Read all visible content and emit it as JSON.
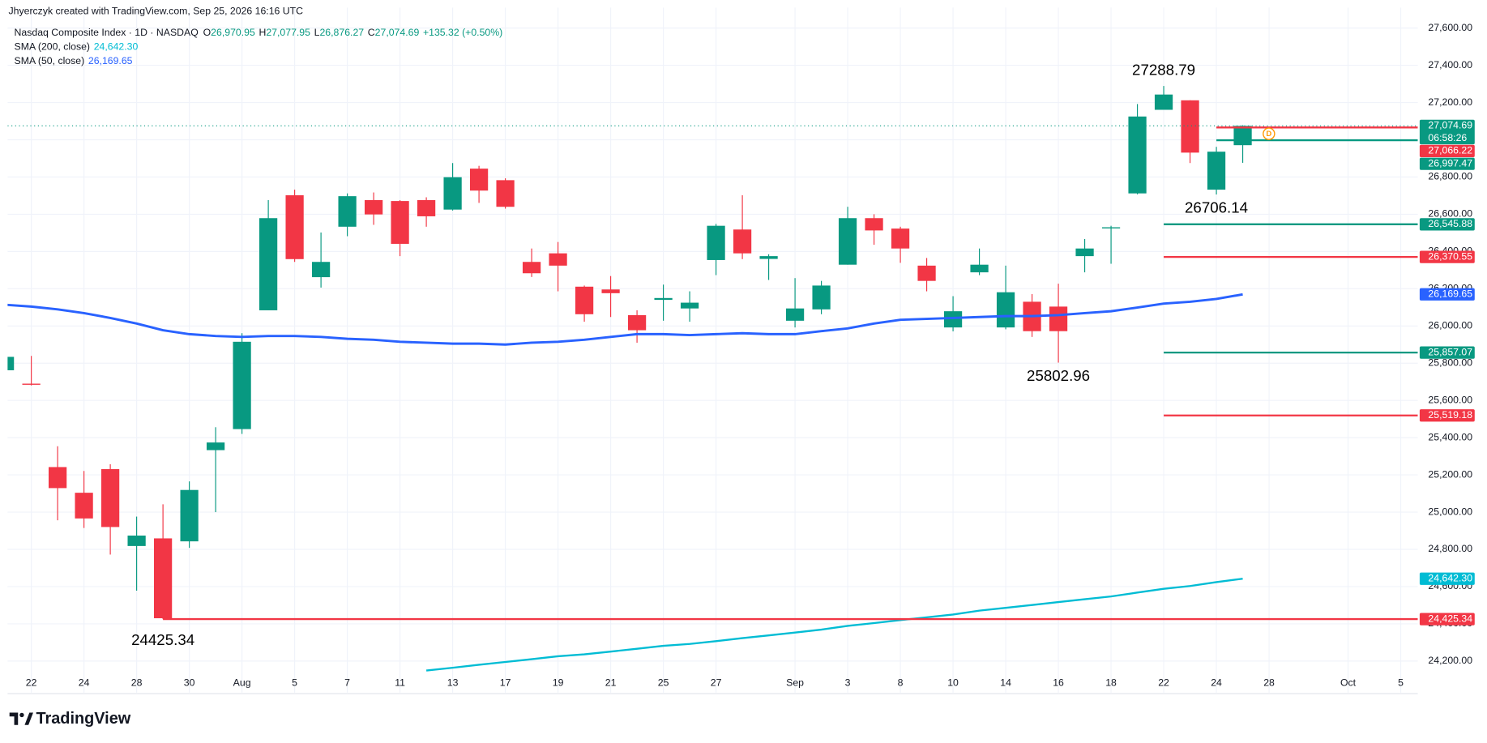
{
  "header": {
    "attribution": "Jhyerczyk created with TradingView.com, Sep 25, 2026 16:16 UTC"
  },
  "footer": {
    "brand": "TradingView"
  },
  "chart_data": {
    "type": "candlestick",
    "title": "Nasdaq Composite Index · 1D · NASDAQ",
    "ohlc_legend": [
      {
        "key": "O",
        "value": "26,970.95"
      },
      {
        "key": "H",
        "value": "27,077.95"
      },
      {
        "key": "L",
        "value": "26,876.27"
      },
      {
        "key": "C",
        "value": "27,074.69"
      }
    ],
    "change": "+135.32 (+0.50%)",
    "countdown": "06:58:26",
    "marker": "D",
    "up_color": "#089981",
    "down_color": "#f23645",
    "grid": true,
    "categories": [
      null,
      "22",
      null,
      "24",
      null,
      "28",
      null,
      "30",
      null,
      "Aug",
      null,
      "5",
      null,
      "7",
      null,
      "11",
      null,
      "13",
      null,
      "17",
      null,
      "19",
      null,
      "21",
      null,
      "25",
      null,
      "27",
      null,
      null,
      "Sep",
      null,
      "3",
      null,
      "8",
      null,
      "10",
      null,
      "14",
      null,
      "16",
      null,
      "18",
      null,
      "22",
      null,
      "24",
      null,
      "28",
      null,
      null,
      "Oct",
      null,
      "5"
    ],
    "open": [
      25762,
      25690,
      25242,
      25104,
      25231,
      24818,
      24859,
      24843,
      25333,
      25446,
      26084,
      26702,
      26262,
      26533,
      26676,
      26671,
      26676,
      26625,
      26845,
      26783,
      26344,
      26390,
      26211,
      26196,
      26058,
      26140,
      26094,
      26354,
      26518,
      26360,
      26028,
      26089,
      26329,
      26579,
      26523,
      26324,
      25992,
      26288,
      25992,
      26130,
      26104,
      26375,
      26524,
      26712,
      27161,
      27212,
      26732,
      26970.95,
      null,
      null,
      null,
      null,
      null,
      null
    ],
    "high": [
      25840,
      25839,
      25354,
      25221,
      25257,
      24976,
      25042,
      25165,
      25456,
      25961,
      26676,
      26732,
      26502,
      26712,
      26717,
      26676,
      26691,
      26875,
      26860,
      26793,
      26416,
      26451,
      26217,
      26268,
      26084,
      26222,
      26186,
      26548,
      26702,
      26385,
      26257,
      26242,
      26640,
      26600,
      26533,
      26365,
      26160,
      26416,
      26324,
      26171,
      26227,
      26467,
      26538,
      27192,
      27288.79,
      27212,
      26962,
      27077.95,
      null,
      null,
      null,
      null,
      null,
      null
    ],
    "low": [
      25760,
      25680,
      24956,
      24915,
      24772,
      24578,
      24425.34,
      24808,
      25000,
      25420,
      26084,
      26344,
      26206,
      26482,
      26543,
      26375,
      26533,
      26620,
      26661,
      26630,
      26263,
      26186,
      26023,
      26048,
      25910,
      26028,
      26023,
      26273,
      26359,
      26247,
      25992,
      26063,
      26329,
      26436,
      26339,
      26186,
      25971,
      26273,
      25982,
      25941,
      25802.96,
      26288,
      26334,
      26707,
      27161,
      26875,
      26706.14,
      26876.27,
      null,
      null,
      null,
      null,
      null,
      null
    ],
    "close": [
      25834,
      25684,
      25129,
      24966,
      24920,
      24874,
      24430,
      25119,
      25374,
      25915,
      26579,
      26359,
      26344,
      26697,
      26599,
      26441,
      26589,
      26799,
      26727,
      26640,
      26283,
      26324,
      26063,
      26176,
      25977,
      26150,
      26125,
      26538,
      26390,
      26375,
      26094,
      26217,
      26579,
      26513,
      26416,
      26242,
      26079,
      26329,
      26181,
      25972,
      25972,
      26416,
      26530,
      27125,
      27243,
      26931,
      26936,
      27074.69,
      null,
      null,
      null,
      null,
      null,
      null
    ],
    "series": [
      {
        "name": "SMA (200, close)",
        "color": "#00bcd4",
        "value_label": "24,642.30",
        "values": [
          null,
          null,
          null,
          null,
          null,
          null,
          null,
          null,
          null,
          null,
          null,
          null,
          null,
          null,
          null,
          null,
          24149,
          24164,
          24180,
          24195,
          24210,
          24226,
          24236,
          24251,
          24266,
          24282,
          24292,
          24307,
          24323,
          24338,
          24353,
          24369,
          24389,
          24404,
          24420,
          24435,
          24450,
          24471,
          24486,
          24501,
          24517,
          24532,
          24547,
          24568,
          24588,
          24603,
          24624,
          24642.3,
          null,
          null,
          null,
          null,
          null,
          null
        ]
      },
      {
        "name": "SMA (50, close)",
        "color": "#2962ff",
        "value_label": "26,169.65",
        "values": [
          26114,
          26104,
          26089,
          26069,
          26043,
          26013,
          25977,
          25956,
          25946,
          25941,
          25946,
          25946,
          25941,
          25931,
          25926,
          25915,
          25910,
          25905,
          25905,
          25900,
          25910,
          25915,
          25926,
          25941,
          25956,
          25956,
          25951,
          25956,
          25961,
          25956,
          25956,
          25972,
          25987,
          26013,
          26033,
          26038,
          26043,
          26048,
          26053,
          26053,
          26058,
          26069,
          26079,
          26099,
          26120,
          26130,
          26145,
          26169.65,
          null,
          null,
          null,
          null,
          null,
          null
        ]
      }
    ],
    "ylim": [
      24030,
      27710
    ],
    "yticks": [
      {
        "value": 24200,
        "label": "24,200.00"
      },
      {
        "value": 24400,
        "label": "24,400.00"
      },
      {
        "value": 24600,
        "label": "24,600.00"
      },
      {
        "value": 24800,
        "label": "24,800.00"
      },
      {
        "value": 25000,
        "label": "25,000.00"
      },
      {
        "value": 25200,
        "label": "25,200.00"
      },
      {
        "value": 25400,
        "label": "25,400.00"
      },
      {
        "value": 25600,
        "label": "25,600.00"
      },
      {
        "value": 25800,
        "label": "25,800.00"
      },
      {
        "value": 26000,
        "label": "26,000.00"
      },
      {
        "value": 26200,
        "label": "26,200.00"
      },
      {
        "value": 26400,
        "label": "26,400.00"
      },
      {
        "value": 26600,
        "label": "26,600.00"
      },
      {
        "value": 26800,
        "label": "26,800.00"
      },
      {
        "value": 27000,
        "label": "27,000.00"
      },
      {
        "value": 27200,
        "label": "27,200.00"
      },
      {
        "value": 27400,
        "label": "27,400.00"
      },
      {
        "value": 27600,
        "label": "27,600.00"
      }
    ],
    "levels": [
      {
        "value": 27074.69,
        "label": "27,074.69",
        "color": "#089981",
        "style": "dotted",
        "current": true
      },
      {
        "value": 27066.22,
        "label": "27,066.22",
        "color": "#f23645",
        "from": 46
      },
      {
        "value": 26997.47,
        "label": "26,997.47",
        "color": "#089981",
        "from": 46
      },
      {
        "value": 26545.88,
        "label": "26,545.88",
        "color": "#089981",
        "from": 44
      },
      {
        "value": 26370.55,
        "label": "26,370.55",
        "color": "#f23645",
        "from": 44
      },
      {
        "value": 25857.07,
        "label": "25,857.07",
        "color": "#089981",
        "from": 44
      },
      {
        "value": 25519.18,
        "label": "25,519.18",
        "color": "#f23645",
        "from": 44
      },
      {
        "value": 24425.34,
        "label": "24,425.34",
        "color": "#f23645",
        "from": 6
      }
    ],
    "annotations": [
      {
        "value": 27288.79,
        "index": 44,
        "position": "above"
      },
      {
        "value": 26706.14,
        "index": 46,
        "position": "below"
      },
      {
        "value": 25802.96,
        "index": 40,
        "position": "below"
      },
      {
        "value": 24425.34,
        "index": 6,
        "position": "below"
      }
    ]
  }
}
